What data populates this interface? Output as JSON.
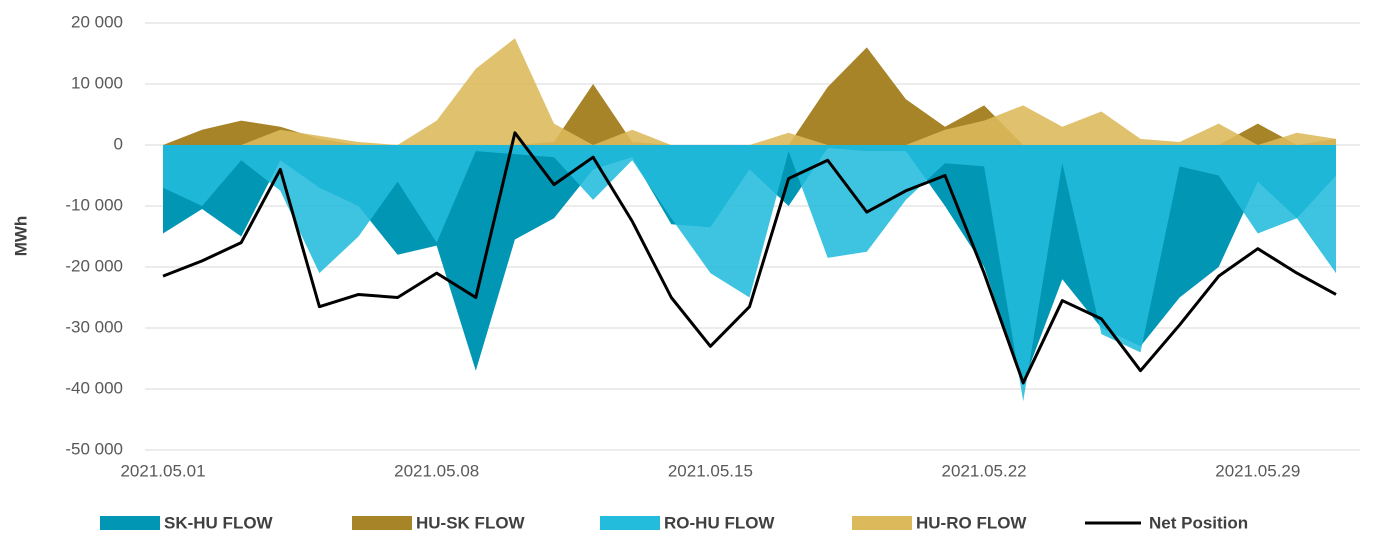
{
  "chart_data": {
    "type": "area",
    "y_label": "MWh",
    "categories": [
      "2021.05.01",
      null,
      null,
      null,
      null,
      null,
      null,
      "2021.05.08",
      null,
      null,
      null,
      null,
      null,
      null,
      "2021.05.15",
      null,
      null,
      null,
      null,
      null,
      null,
      "2021.05.22",
      null,
      null,
      null,
      null,
      null,
      null,
      "2021.05.29",
      null,
      null
    ],
    "ylim": [
      -50000,
      20000
    ],
    "yticks": [
      {
        "value": -50000,
        "label": "-50 000"
      },
      {
        "value": -40000,
        "label": "-40 000"
      },
      {
        "value": -30000,
        "label": "-30 000"
      },
      {
        "value": -20000,
        "label": "-20 000"
      },
      {
        "value": -10000,
        "label": "-10 000"
      },
      0,
      {
        "value": 10000,
        "label": "10 000"
      },
      {
        "value": 20000,
        "label": "20 000"
      }
    ],
    "grid": true,
    "legend": "bottom",
    "series": [
      {
        "name": "SK-HU FLOW",
        "color": "#0096b4",
        "type": "area",
        "values": [
          -14500,
          -10500,
          -15000,
          -2500,
          -7000,
          -10000,
          -18000,
          -16500,
          -37000,
          -15500,
          -12000,
          -4000,
          -2000,
          -13000,
          -13500,
          -4000,
          -10000,
          -500,
          -1000,
          -1000,
          -10000,
          -20000,
          -39000,
          -22000,
          -30000,
          -33000,
          -25000,
          -20000,
          -6000,
          -12000,
          -5000
        ]
      },
      {
        "name": "HU-SK FLOW",
        "color": "#a88428",
        "type": "area",
        "values": [
          0,
          2500,
          4000,
          3000,
          1000,
          0,
          0,
          0,
          0,
          0,
          500,
          10000,
          500,
          0,
          0,
          0,
          0,
          9500,
          16000,
          7500,
          3000,
          6500,
          0,
          0,
          0,
          0,
          0,
          0,
          3500,
          0,
          1000
        ]
      },
      {
        "name": "RO-HU FLOW",
        "color": "#23bcdc",
        "type": "area",
        "values": [
          -7000,
          -10000,
          -2500,
          -7500,
          -21000,
          -15000,
          -6000,
          -16000,
          -1000,
          -1500,
          -2000,
          -9000,
          -2500,
          -12000,
          -21000,
          -25000,
          -1000,
          -18500,
          -17500,
          -9000,
          -3000,
          -3500,
          -42000,
          -3000,
          -31000,
          -34000,
          -3500,
          -5000,
          -14500,
          -12000,
          -21000
        ]
      },
      {
        "name": "HU-RO FLOW",
        "color": "#dcb95a",
        "type": "area",
        "values": [
          0,
          0,
          0,
          2500,
          1500,
          500,
          0,
          4000,
          12500,
          17500,
          3500,
          0,
          2500,
          0,
          0,
          0,
          2000,
          0,
          0,
          0,
          2500,
          4000,
          6500,
          3000,
          5500,
          1000,
          500,
          3500,
          0,
          2000,
          1000
        ]
      },
      {
        "name": "Net Position",
        "color": "#000000",
        "type": "line",
        "values": [
          -21500,
          -19000,
          -16000,
          -4000,
          -26500,
          -24500,
          -25000,
          -21000,
          -25000,
          2000,
          -6500,
          -2000,
          -12500,
          -25000,
          -33000,
          -26500,
          -5500,
          -2500,
          -11000,
          -7500,
          -5000,
          -21000,
          -39000,
          -25500,
          -28500,
          -37000,
          -29500,
          -21500,
          -17000,
          -21000,
          -24500
        ]
      }
    ]
  }
}
